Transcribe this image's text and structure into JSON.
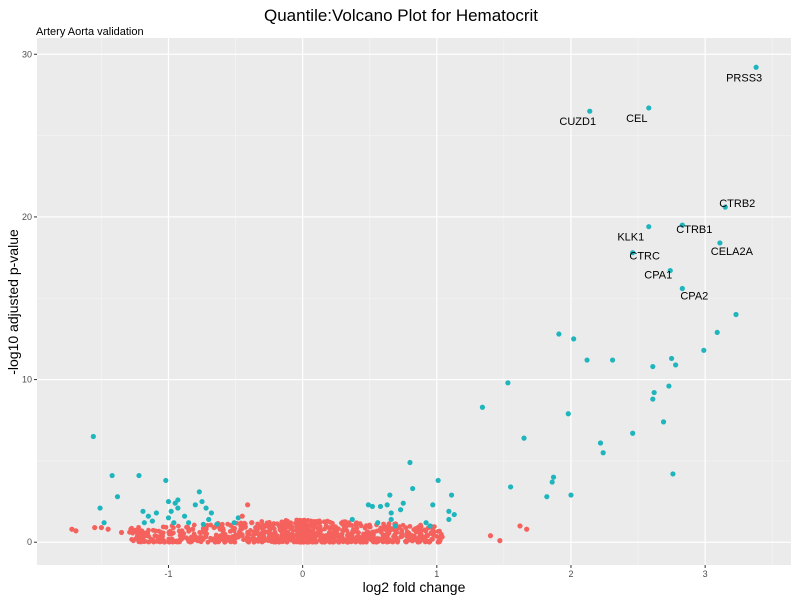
{
  "chart_data": {
    "type": "scatter",
    "title": "Quantile:Volcano Plot for Hematocrit",
    "subtitle": "Artery Aorta validation",
    "xlabel": "log2 fold change",
    "ylabel": "-log10 adjusted p-value",
    "xlim": [
      -1.98,
      3.64
    ],
    "ylim": [
      -1.4,
      31.0
    ],
    "xticks": [
      -1,
      0,
      1,
      2,
      3
    ],
    "yticks": [
      0,
      10,
      20,
      30
    ],
    "grid": true,
    "legend": "none",
    "colors": {
      "panel": "#ebebeb",
      "grid_major": "#ffffff",
      "grid_minor": "#f5f5f5",
      "significant": "#1fb5bd",
      "not_significant": "#f5625d"
    },
    "series": [
      {
        "color": "#1fb5bd",
        "points": [
          {
            "x": 3.38,
            "y": 29.2,
            "label": "PRSS3"
          },
          {
            "x": 2.58,
            "y": 26.7,
            "label": "CEL"
          },
          {
            "x": 2.14,
            "y": 26.5,
            "label": "CUZD1"
          },
          {
            "x": 3.15,
            "y": 20.6,
            "label": "CTRB2"
          },
          {
            "x": 2.83,
            "y": 19.5,
            "label": "CTRB1"
          },
          {
            "x": 2.58,
            "y": 19.4,
            "label": "KLK1"
          },
          {
            "x": 3.11,
            "y": 18.4,
            "label": "CELA2A"
          },
          {
            "x": 2.46,
            "y": 17.8,
            "label": "CTRC"
          },
          {
            "x": 2.74,
            "y": 16.7,
            "label": "CPA1"
          },
          {
            "x": 2.83,
            "y": 15.6,
            "label": "CPA2"
          },
          {
            "x": 3.23,
            "y": 14.0
          },
          {
            "x": 3.09,
            "y": 12.9
          },
          {
            "x": 1.91,
            "y": 12.8
          },
          {
            "x": 2.02,
            "y": 12.5
          },
          {
            "x": 2.99,
            "y": 11.8
          },
          {
            "x": 2.75,
            "y": 11.3
          },
          {
            "x": 2.12,
            "y": 11.2
          },
          {
            "x": 2.31,
            "y": 11.2
          },
          {
            "x": 2.78,
            "y": 10.9
          },
          {
            "x": 2.61,
            "y": 10.8
          },
          {
            "x": 1.53,
            "y": 9.8
          },
          {
            "x": 2.73,
            "y": 9.6
          },
          {
            "x": 2.62,
            "y": 9.2
          },
          {
            "x": 2.61,
            "y": 8.8
          },
          {
            "x": 1.34,
            "y": 8.3
          },
          {
            "x": 1.98,
            "y": 7.9
          },
          {
            "x": 2.69,
            "y": 7.4
          },
          {
            "x": 2.46,
            "y": 6.7
          },
          {
            "x": -1.56,
            "y": 6.5
          },
          {
            "x": 1.65,
            "y": 6.4
          },
          {
            "x": 2.22,
            "y": 6.1
          },
          {
            "x": 2.24,
            "y": 5.5
          },
          {
            "x": 0.8,
            "y": 4.9
          },
          {
            "x": -1.42,
            "y": 4.1
          },
          {
            "x": -1.22,
            "y": 4.1
          },
          {
            "x": 2.76,
            "y": 4.2
          },
          {
            "x": 1.87,
            "y": 4.0
          },
          {
            "x": 1.86,
            "y": 3.7
          },
          {
            "x": -1.51,
            "y": 2.1
          },
          {
            "x": -1.38,
            "y": 2.8
          },
          {
            "x": -1.02,
            "y": 3.8
          },
          {
            "x": 1.01,
            "y": 3.8
          },
          {
            "x": 1.55,
            "y": 3.4
          },
          {
            "x": -0.77,
            "y": 3.1
          },
          {
            "x": 0.82,
            "y": 3.3
          },
          {
            "x": 0.65,
            "y": 2.9
          },
          {
            "x": 2.0,
            "y": 2.9
          },
          {
            "x": 1.11,
            "y": 2.9
          },
          {
            "x": 1.82,
            "y": 2.8
          },
          {
            "x": -1.0,
            "y": 2.5
          },
          {
            "x": -0.95,
            "y": 2.4
          },
          {
            "x": -0.93,
            "y": 2.6
          },
          {
            "x": -1.48,
            "y": 1.2
          },
          {
            "x": -1.19,
            "y": 1.9
          },
          {
            "x": -1.15,
            "y": 1.6
          },
          {
            "x": -1.09,
            "y": 1.8
          },
          {
            "x": -1.12,
            "y": 1.3
          },
          {
            "x": -1.18,
            "y": 1.2
          },
          {
            "x": -1.0,
            "y": 1.5
          },
          {
            "x": -0.98,
            "y": 1.9
          },
          {
            "x": -0.93,
            "y": 2.1
          },
          {
            "x": -0.88,
            "y": 1.6
          },
          {
            "x": -0.85,
            "y": 1.2
          },
          {
            "x": -0.96,
            "y": 1.2
          },
          {
            "x": -0.8,
            "y": 2.3
          },
          {
            "x": -0.75,
            "y": 2.5
          },
          {
            "x": -0.72,
            "y": 2.1
          },
          {
            "x": -0.7,
            "y": 1.4
          },
          {
            "x": -0.68,
            "y": 1.8
          },
          {
            "x": -0.74,
            "y": 1.1
          },
          {
            "x": -0.48,
            "y": 1.5
          },
          {
            "x": -0.51,
            "y": 1.2
          },
          {
            "x": -0.64,
            "y": 1.1
          },
          {
            "x": 0.37,
            "y": 1.4
          },
          {
            "x": 0.49,
            "y": 2.3
          },
          {
            "x": 0.52,
            "y": 2.2
          },
          {
            "x": 0.63,
            "y": 2.3
          },
          {
            "x": 0.66,
            "y": 1.8
          },
          {
            "x": 0.75,
            "y": 2.4
          },
          {
            "x": 0.73,
            "y": 2.0
          },
          {
            "x": 0.66,
            "y": 1.4
          },
          {
            "x": 0.56,
            "y": 1.2
          },
          {
            "x": 0.69,
            "y": 1.0
          },
          {
            "x": 0.92,
            "y": 1.2
          },
          {
            "x": 0.95,
            "y": 1.0
          },
          {
            "x": 0.97,
            "y": 2.3
          },
          {
            "x": 1.09,
            "y": 1.9
          },
          {
            "x": 1.13,
            "y": 1.7
          },
          {
            "x": 1.09,
            "y": 1.4
          },
          {
            "x": 0.58,
            "y": 2.2
          }
        ]
      },
      {
        "color": "#f5625d",
        "points": [
          {
            "x": -1.72,
            "y": 0.8
          },
          {
            "x": -1.69,
            "y": 0.7
          },
          {
            "x": -1.55,
            "y": 0.9
          },
          {
            "x": -1.5,
            "y": 0.9
          },
          {
            "x": -1.45,
            "y": 0.8
          },
          {
            "x": -1.35,
            "y": 0.6
          },
          {
            "x": -1.28,
            "y": 0.8
          },
          {
            "x": -1.2,
            "y": 0.7
          },
          {
            "x": -1.1,
            "y": 0.4
          },
          {
            "x": -0.98,
            "y": 0.5
          },
          {
            "x": -0.9,
            "y": 0.7
          },
          {
            "x": -0.82,
            "y": 0.8
          },
          {
            "x": -0.72,
            "y": 0.5
          },
          {
            "x": -0.66,
            "y": 0.9
          },
          {
            "x": -0.61,
            "y": 0.4
          },
          {
            "x": -0.55,
            "y": 0.3
          },
          {
            "x": -0.46,
            "y": 0.8
          },
          {
            "x": -0.4,
            "y": 0.5
          },
          {
            "x": -0.41,
            "y": 2.3
          },
          {
            "x": -0.45,
            "y": 1.6
          },
          {
            "x": -0.38,
            "y": 1.2
          },
          {
            "x": -0.35,
            "y": 0.9
          },
          {
            "x": -0.3,
            "y": 0.6
          },
          {
            "x": -0.26,
            "y": 1.0
          },
          {
            "x": -0.22,
            "y": 0.5
          },
          {
            "x": -0.16,
            "y": 0.7
          },
          {
            "x": -0.12,
            "y": 0.4
          },
          {
            "x": -0.08,
            "y": 0.3
          },
          {
            "x": -0.04,
            "y": 0.2
          },
          {
            "x": 0.0,
            "y": 0.1
          },
          {
            "x": 0.03,
            "y": 0.2
          },
          {
            "x": 0.07,
            "y": 0.3
          },
          {
            "x": 0.11,
            "y": 0.5
          },
          {
            "x": 0.15,
            "y": 0.4
          },
          {
            "x": 0.2,
            "y": 0.6
          },
          {
            "x": 0.24,
            "y": 0.5
          },
          {
            "x": 0.3,
            "y": 0.7
          },
          {
            "x": 0.35,
            "y": 0.4
          },
          {
            "x": 0.41,
            "y": 0.6
          },
          {
            "x": 0.46,
            "y": 0.3
          },
          {
            "x": 0.52,
            "y": 0.5
          },
          {
            "x": 0.58,
            "y": 0.8
          },
          {
            "x": 0.63,
            "y": 0.4
          },
          {
            "x": 0.7,
            "y": 0.6
          },
          {
            "x": 0.78,
            "y": 0.5
          },
          {
            "x": 0.85,
            "y": 0.7
          },
          {
            "x": 0.93,
            "y": 0.4
          },
          {
            "x": 1.4,
            "y": 0.4
          },
          {
            "x": 1.47,
            "y": 0.1
          },
          {
            "x": 1.62,
            "y": 1.0
          },
          {
            "x": 1.67,
            "y": 0.8
          },
          {
            "x": 0.03,
            "y": 0.8
          },
          {
            "x": -0.03,
            "y": 0.8
          }
        ]
      }
    ],
    "background_cloud": {
      "color": "#f5625d",
      "x_range": [
        -1.3,
        1.05
      ],
      "y_max_near_zero": 1.4,
      "y_max_at_edges": 0.9
    }
  }
}
